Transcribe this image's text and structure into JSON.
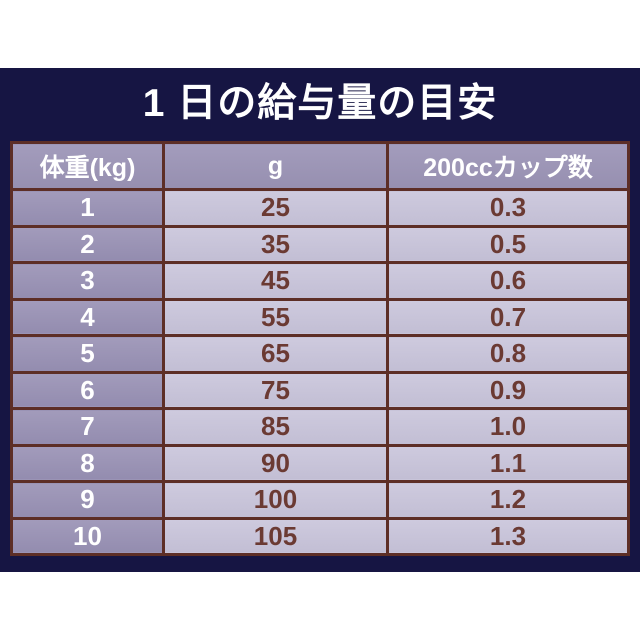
{
  "title": "1 日の給与量の目安",
  "table": {
    "headers": [
      "体重(kg)",
      "g",
      "200ccカップ数"
    ],
    "rows": [
      [
        "1",
        "25",
        "0.3"
      ],
      [
        "2",
        "35",
        "0.5"
      ],
      [
        "3",
        "45",
        "0.6"
      ],
      [
        "4",
        "55",
        "0.7"
      ],
      [
        "5",
        "65",
        "0.8"
      ],
      [
        "6",
        "75",
        "0.9"
      ],
      [
        "7",
        "85",
        "1.0"
      ],
      [
        "8",
        "90",
        "1.1"
      ],
      [
        "9",
        "100",
        "1.2"
      ],
      [
        "10",
        "105",
        "1.3"
      ]
    ]
  },
  "colors": {
    "panel_navy": "#161543",
    "header_purple": "#9a93b4",
    "cell_lavender": "#c7c3d8",
    "border_brown": "#5d2e26",
    "cell_text_brown": "#6b3a33",
    "title_white": "#ffffff",
    "page_background": "#ffffff"
  },
  "chart_data": {
    "type": "table",
    "title": "1 日の給与量の目安",
    "columns": [
      "体重(kg)",
      "g",
      "200ccカップ数"
    ],
    "rows": [
      [
        1,
        25,
        0.3
      ],
      [
        2,
        35,
        0.5
      ],
      [
        3,
        45,
        0.6
      ],
      [
        4,
        55,
        0.7
      ],
      [
        5,
        65,
        0.8
      ],
      [
        6,
        75,
        0.9
      ],
      [
        7,
        85,
        1.0
      ],
      [
        8,
        90,
        1.1
      ],
      [
        9,
        100,
        1.2
      ],
      [
        10,
        105,
        1.3
      ]
    ]
  }
}
